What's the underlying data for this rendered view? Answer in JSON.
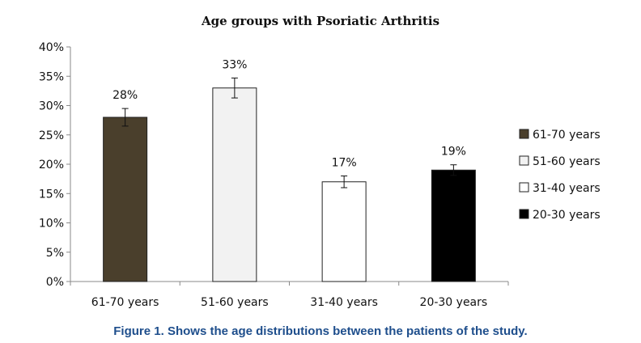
{
  "chart_data": {
    "type": "bar",
    "title": "Age groups with Psoriatic Arthritis",
    "categories": [
      "61-70 years",
      "51-60 years",
      "31-40 years",
      "20-30 years"
    ],
    "values": [
      28,
      33,
      17,
      19
    ],
    "data_labels": [
      "28%",
      "33%",
      "17%",
      "19%"
    ],
    "error_bars": [
      1.5,
      1.7,
      1.0,
      0.9
    ],
    "ylim": [
      0,
      40
    ],
    "yticks": [
      "0%",
      "5%",
      "10%",
      "15%",
      "20%",
      "25%",
      "30%",
      "35%",
      "40%"
    ],
    "xlabel": "",
    "ylabel": "",
    "grid": false,
    "legend_position": "right",
    "legend": [
      {
        "label": "61-70 years",
        "color": "#4a3f2c"
      },
      {
        "label": "51-60 years",
        "color": "#f2f2f2"
      },
      {
        "label": "31-40 years",
        "color": "#ffffff"
      },
      {
        "label": "20-30 years",
        "color": "#000000"
      }
    ],
    "bar_colors": [
      "#4a3f2c",
      "#f2f2f2",
      "#ffffff",
      "#000000"
    ]
  },
  "caption": "Figure 1. Shows the age distributions between the patients of the study."
}
